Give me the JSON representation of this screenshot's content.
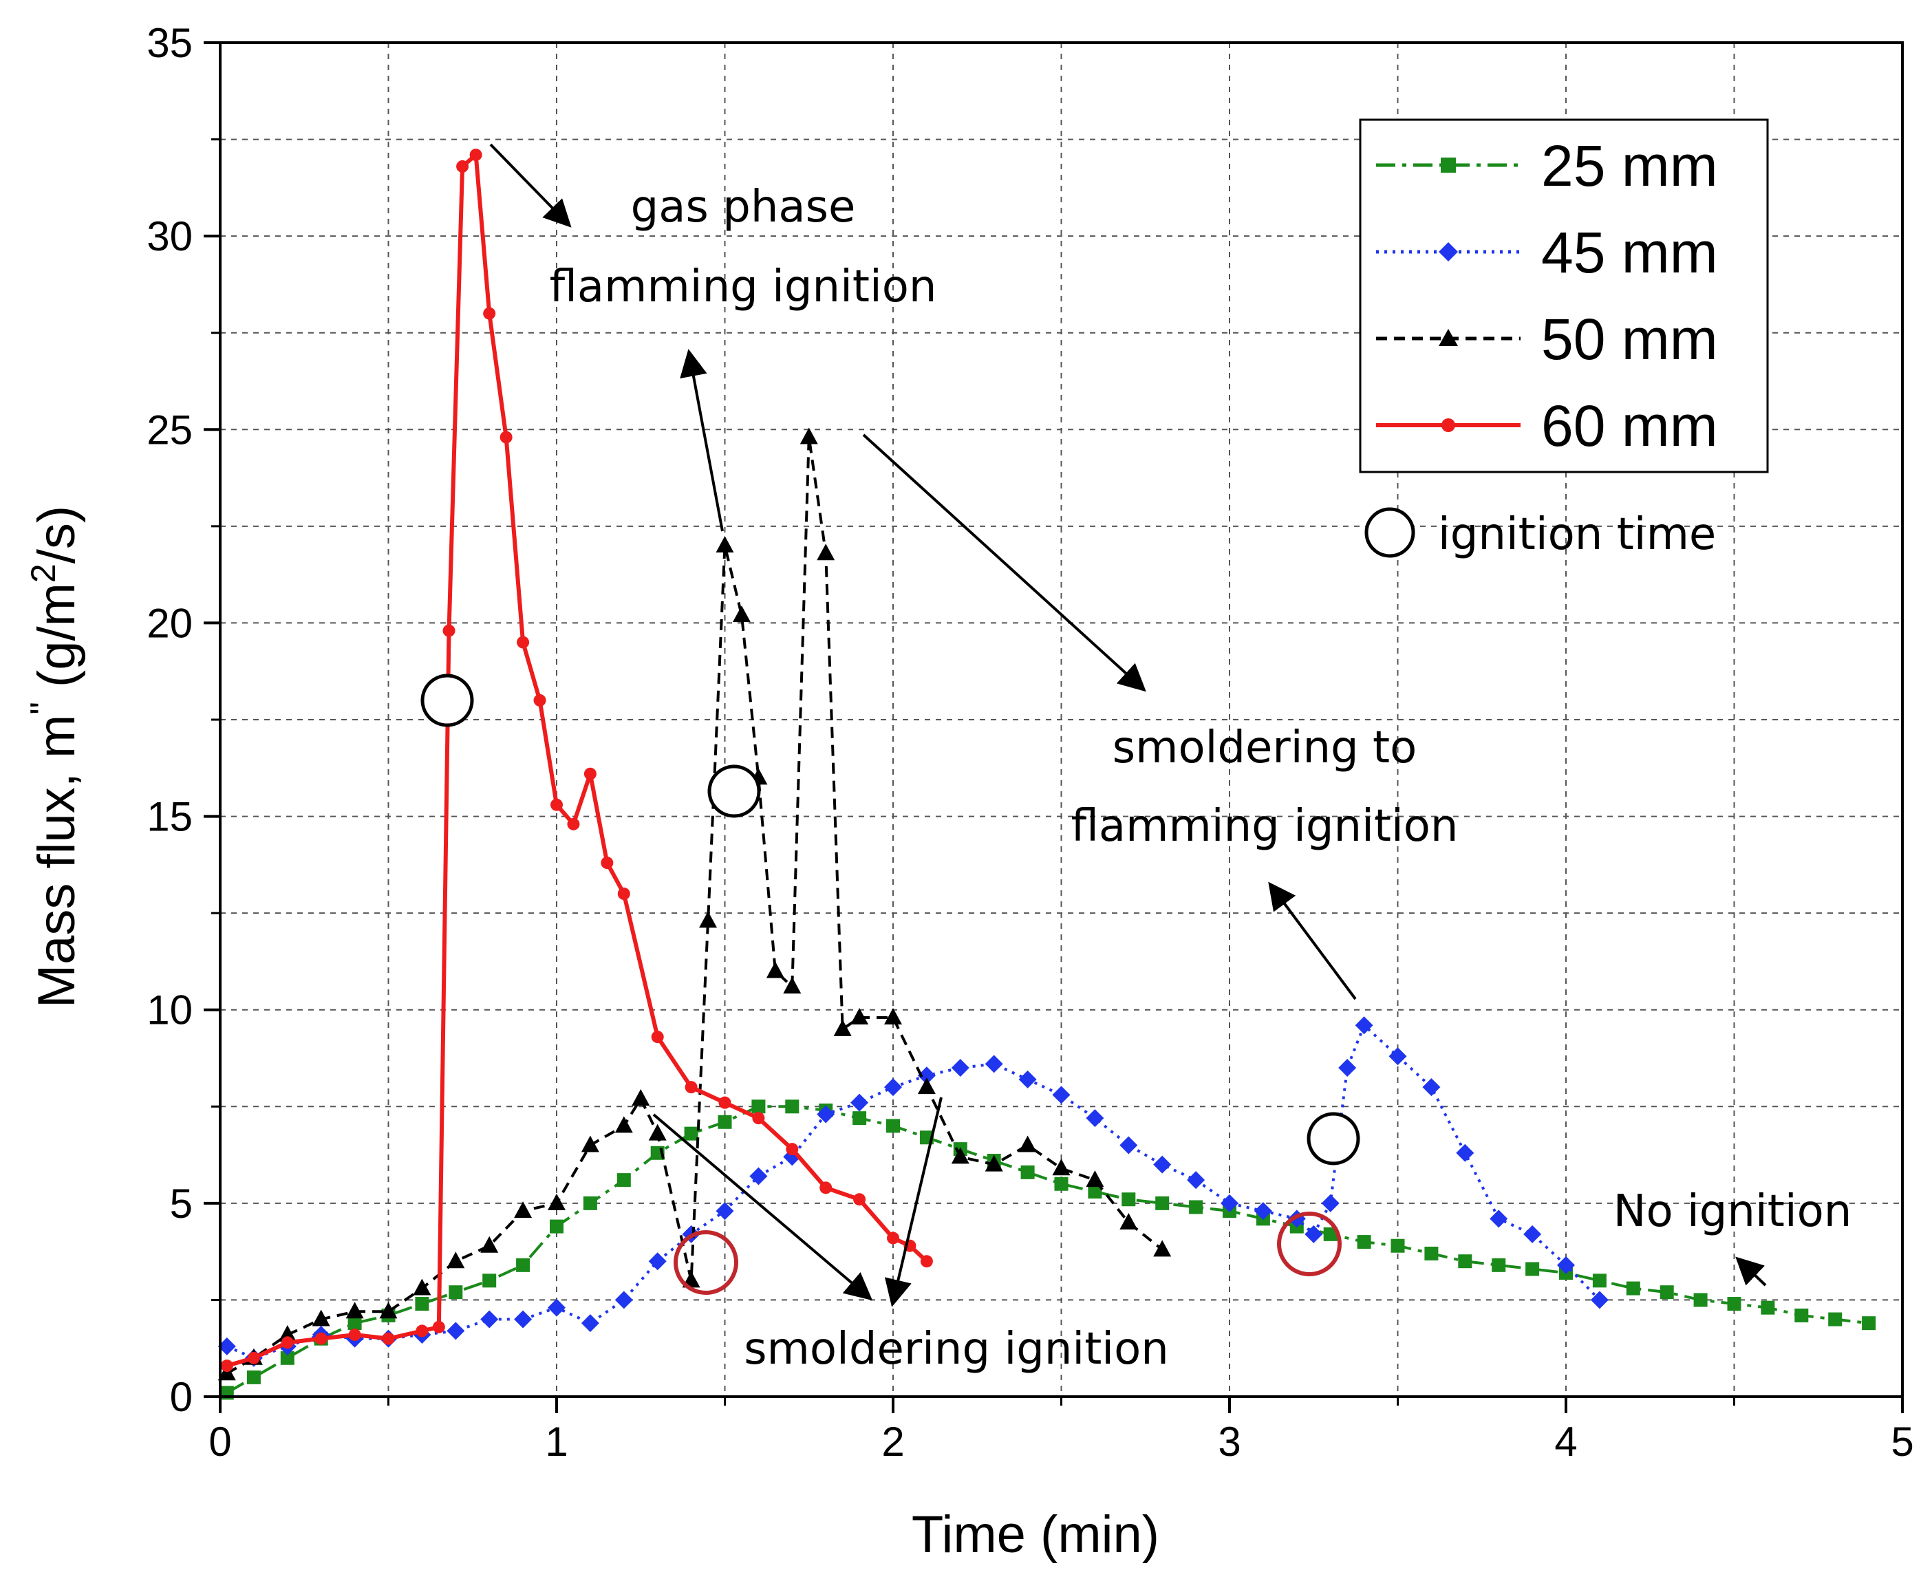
{
  "chart_data": {
    "type": "line",
    "xlabel": "Time (min)",
    "ylabel_main": "Mass flux, m",
    "ylabel_prime": "\"",
    "ylabel_unit_open": " (g/m",
    "ylabel_unit_sup": "2",
    "ylabel_unit_close": "/s)",
    "xlim": [
      0,
      5
    ],
    "ylim": [
      0,
      35
    ],
    "x_ticks": [
      0,
      1,
      2,
      3,
      4,
      5
    ],
    "y_ticks": [
      0,
      5,
      10,
      15,
      20,
      25,
      30,
      35
    ],
    "grid": true,
    "legend_position": "top-right",
    "series": [
      {
        "name": "25 mm",
        "color": "#1a8a1a",
        "marker": "square",
        "line": "dash-dot",
        "x": [
          0.02,
          0.1,
          0.2,
          0.3,
          0.4,
          0.5,
          0.6,
          0.7,
          0.8,
          0.9,
          1.0,
          1.1,
          1.2,
          1.3,
          1.4,
          1.5,
          1.6,
          1.7,
          1.8,
          1.9,
          2.0,
          2.1,
          2.2,
          2.3,
          2.4,
          2.5,
          2.6,
          2.7,
          2.8,
          2.9,
          3.0,
          3.1,
          3.2,
          3.3,
          3.4,
          3.5,
          3.6,
          3.7,
          3.8,
          3.9,
          4.0,
          4.1,
          4.2,
          4.3,
          4.4,
          4.5,
          4.6,
          4.7,
          4.8,
          4.9
        ],
        "y": [
          0.1,
          0.5,
          1.0,
          1.5,
          1.9,
          2.1,
          2.4,
          2.7,
          3.0,
          3.4,
          4.4,
          5.0,
          5.6,
          6.3,
          6.8,
          7.1,
          7.5,
          7.5,
          7.4,
          7.2,
          7.0,
          6.7,
          6.4,
          6.1,
          5.8,
          5.5,
          5.3,
          5.1,
          5.0,
          4.9,
          4.8,
          4.6,
          4.4,
          4.2,
          4.0,
          3.9,
          3.7,
          3.5,
          3.4,
          3.3,
          3.2,
          3.0,
          2.8,
          2.7,
          2.5,
          2.4,
          2.3,
          2.1,
          2.0,
          1.9
        ]
      },
      {
        "name": "45 mm",
        "color": "#1f35ee",
        "marker": "diamond",
        "line": "dotted",
        "x": [
          0.02,
          0.1,
          0.2,
          0.3,
          0.4,
          0.5,
          0.6,
          0.7,
          0.8,
          0.9,
          1.0,
          1.1,
          1.2,
          1.3,
          1.4,
          1.5,
          1.6,
          1.7,
          1.8,
          1.9,
          2.0,
          2.1,
          2.2,
          2.3,
          2.4,
          2.5,
          2.6,
          2.7,
          2.8,
          2.9,
          3.0,
          3.1,
          3.2,
          3.25,
          3.3,
          3.35,
          3.4,
          3.5,
          3.6,
          3.7,
          3.8,
          3.9,
          4.0,
          4.1
        ],
        "y": [
          1.3,
          1.0,
          1.3,
          1.6,
          1.5,
          1.5,
          1.6,
          1.7,
          2.0,
          2.0,
          2.3,
          1.9,
          2.5,
          3.5,
          4.2,
          4.8,
          5.7,
          6.2,
          7.3,
          7.6,
          8.0,
          8.3,
          8.5,
          8.6,
          8.2,
          7.8,
          7.2,
          6.5,
          6.0,
          5.6,
          5.0,
          4.8,
          4.6,
          4.2,
          5.0,
          8.5,
          9.6,
          8.8,
          8.0,
          6.3,
          4.6,
          4.2,
          3.4,
          2.5
        ]
      },
      {
        "name": "50 mm",
        "color": "#000000",
        "marker": "triangle",
        "line": "dashed",
        "x": [
          0.02,
          0.1,
          0.2,
          0.3,
          0.4,
          0.5,
          0.6,
          0.7,
          0.8,
          0.9,
          1.0,
          1.1,
          1.2,
          1.25,
          1.3,
          1.4,
          1.45,
          1.5,
          1.55,
          1.6,
          1.65,
          1.7,
          1.75,
          1.8,
          1.85,
          1.9,
          2.0,
          2.1,
          2.2,
          2.3,
          2.4,
          2.5,
          2.6,
          2.7,
          2.8
        ],
        "y": [
          0.6,
          1.0,
          1.6,
          2.0,
          2.2,
          2.2,
          2.8,
          3.5,
          3.9,
          4.8,
          5.0,
          6.5,
          7.0,
          7.7,
          6.8,
          3.0,
          12.3,
          22.0,
          20.2,
          16.0,
          11.0,
          10.6,
          24.8,
          21.8,
          9.5,
          9.8,
          9.8,
          8.0,
          6.2,
          6.0,
          6.5,
          5.9,
          5.6,
          4.5,
          3.8
        ]
      },
      {
        "name": "60 mm",
        "color": "#ee1c1c",
        "marker": "circle",
        "line": "solid",
        "x": [
          0.02,
          0.1,
          0.2,
          0.3,
          0.4,
          0.5,
          0.6,
          0.65,
          0.68,
          0.72,
          0.76,
          0.8,
          0.85,
          0.9,
          0.95,
          1.0,
          1.05,
          1.1,
          1.15,
          1.2,
          1.3,
          1.4,
          1.5,
          1.6,
          1.7,
          1.8,
          1.9,
          2.0,
          2.05,
          2.1
        ],
        "y": [
          0.8,
          1.0,
          1.4,
          1.5,
          1.6,
          1.5,
          1.7,
          1.8,
          19.8,
          31.8,
          32.1,
          28.0,
          24.8,
          19.5,
          18.0,
          15.3,
          14.8,
          16.1,
          13.8,
          13.0,
          9.3,
          8.0,
          7.6,
          7.2,
          6.4,
          5.4,
          5.1,
          4.1,
          3.9,
          3.5
        ]
      }
    ],
    "annotations": {
      "gas_phase_line1": "gas phase",
      "gas_phase_line2": "flamming ignition",
      "smoldering_to_line1": "smoldering to",
      "smoldering_to_line2": "flamming ignition",
      "smoldering": "smoldering ignition",
      "no_ignition": "No ignition",
      "ignition_time": "ignition time"
    }
  }
}
